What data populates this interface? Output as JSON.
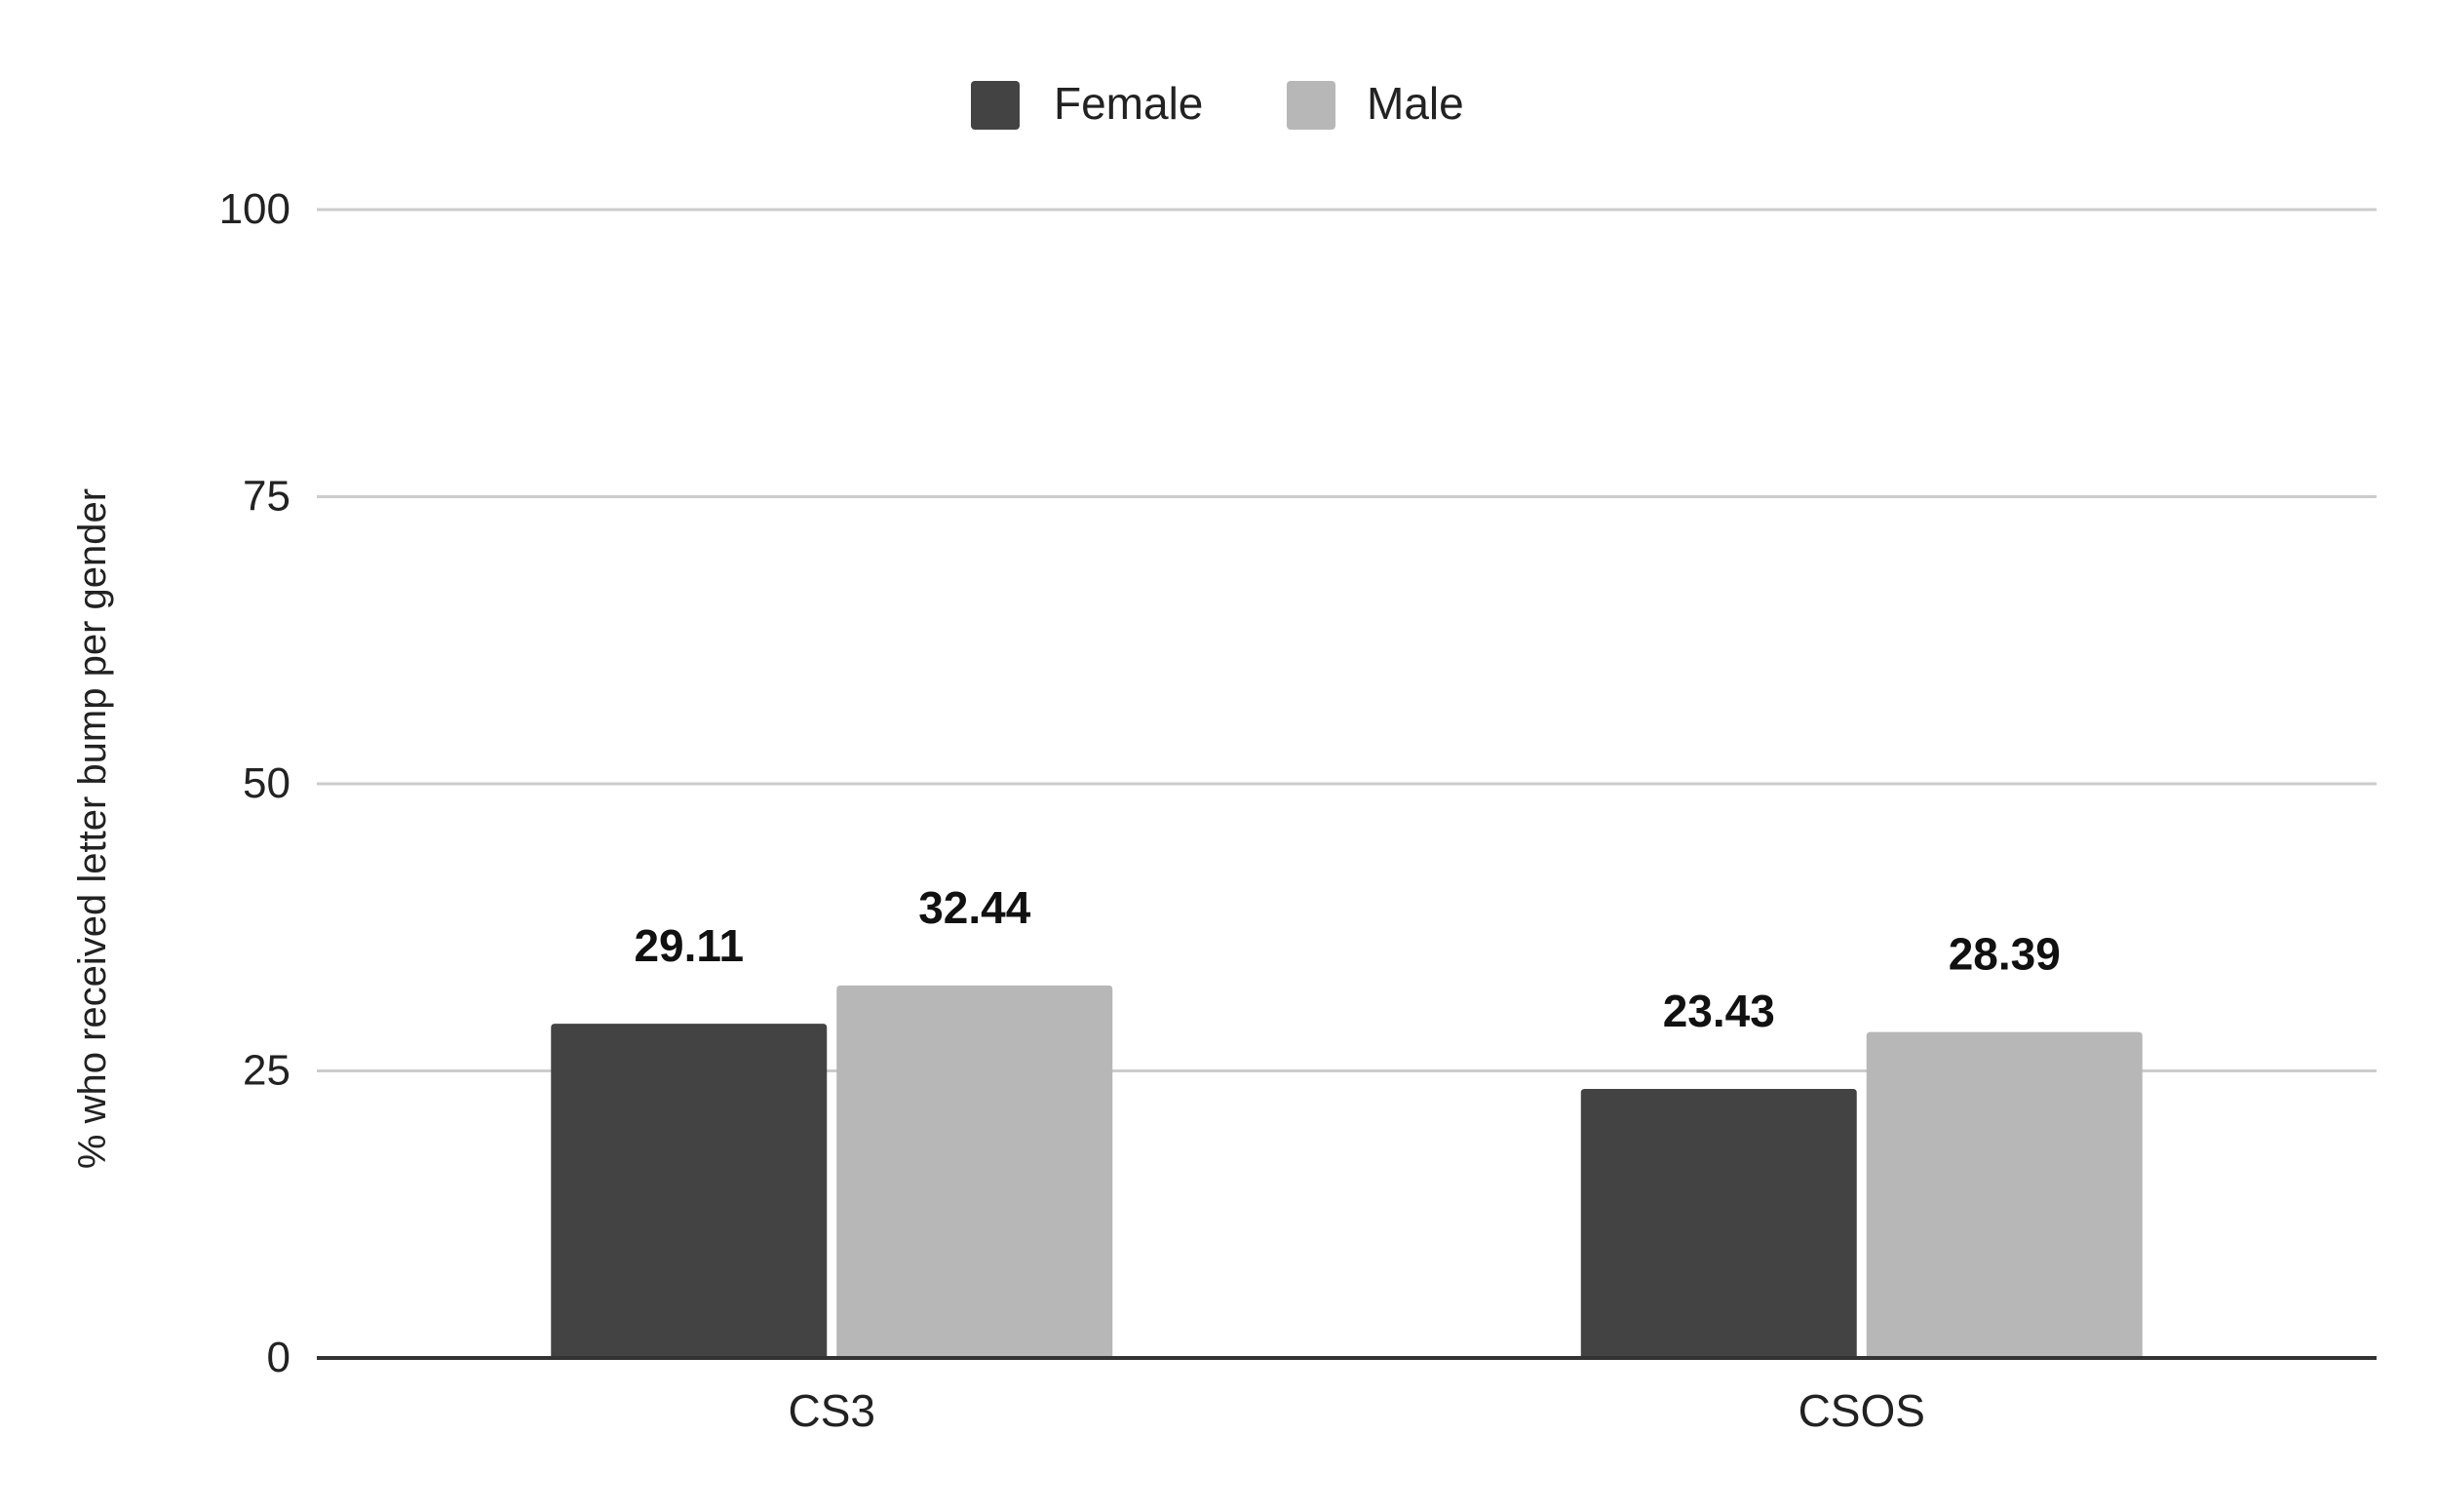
{
  "chart_data": {
    "type": "bar",
    "categories": [
      "CS3",
      "CSOS"
    ],
    "series": [
      {
        "name": "Female",
        "values": [
          29.11,
          23.43
        ],
        "color": "#434343"
      },
      {
        "name": "Male",
        "values": [
          32.44,
          28.39
        ],
        "color": "#b7b7b7"
      }
    ],
    "ylabel": "% who received letter bump per gender",
    "xlabel": "",
    "ylim": [
      0,
      100
    ],
    "yticks": [
      0,
      25,
      50,
      75,
      100
    ],
    "grid": true,
    "gridColor": "#cccccc",
    "axisColor": "#333333",
    "legend": "top-center",
    "data_labels": true
  }
}
